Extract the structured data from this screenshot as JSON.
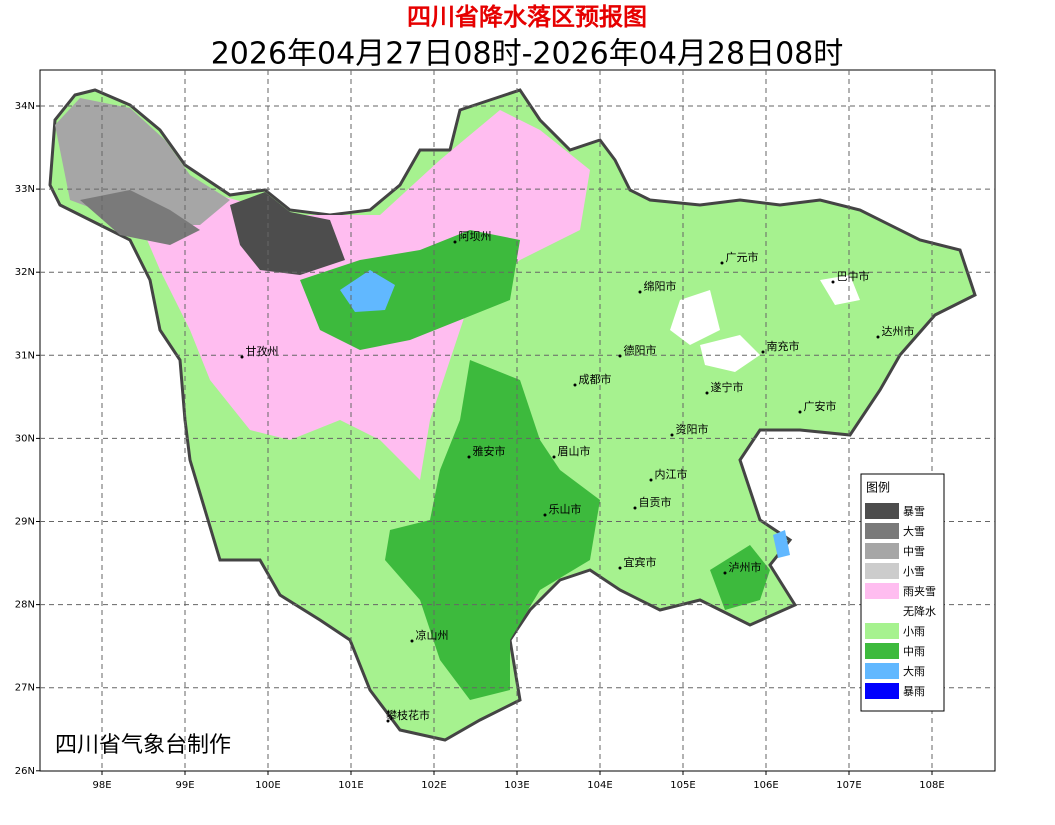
{
  "title": "四川省降水落区预报图",
  "subtitle": "2026年04月27日08时-2026年04月28日08时",
  "map": {
    "lon_ticks": [
      "98E",
      "99E",
      "100E",
      "101E",
      "102E",
      "103E",
      "104E",
      "105E",
      "106E",
      "107E",
      "108E"
    ],
    "lat_ticks": [
      "34N",
      "33N",
      "32N",
      "31N",
      "30N",
      "29N",
      "28N",
      "27N",
      "26N"
    ],
    "cities": [
      "阿坝州",
      "广元市",
      "巴中市",
      "绵阳市",
      "达州市",
      "甘孜州",
      "德阳市",
      "南充市",
      "成都市",
      "遂宁市",
      "广安市",
      "资阳市",
      "雅安市",
      "眉山市",
      "内江市",
      "自贡市",
      "乐山市",
      "宜宾市",
      "泸州市",
      "凉山州",
      "攀枝花市"
    ]
  },
  "legend": {
    "title": "图例",
    "items": [
      {
        "label": "暴雪",
        "color": "#4d4d4d"
      },
      {
        "label": "大雪",
        "color": "#7a7a7a"
      },
      {
        "label": "中雪",
        "color": "#a6a6a6"
      },
      {
        "label": "小雪",
        "color": "#cccccc"
      },
      {
        "label": "雨夹雪",
        "color": "#ffbdf0"
      },
      {
        "label": "无降水",
        "color": "#ffffff"
      },
      {
        "label": "小雨",
        "color": "#a6f28f"
      },
      {
        "label": "中雨",
        "color": "#3dba3d"
      },
      {
        "label": "大雨",
        "color": "#61b8ff"
      },
      {
        "label": "暴雨",
        "color": "#0000fe"
      }
    ]
  },
  "credit": "四川省气象台制作"
}
